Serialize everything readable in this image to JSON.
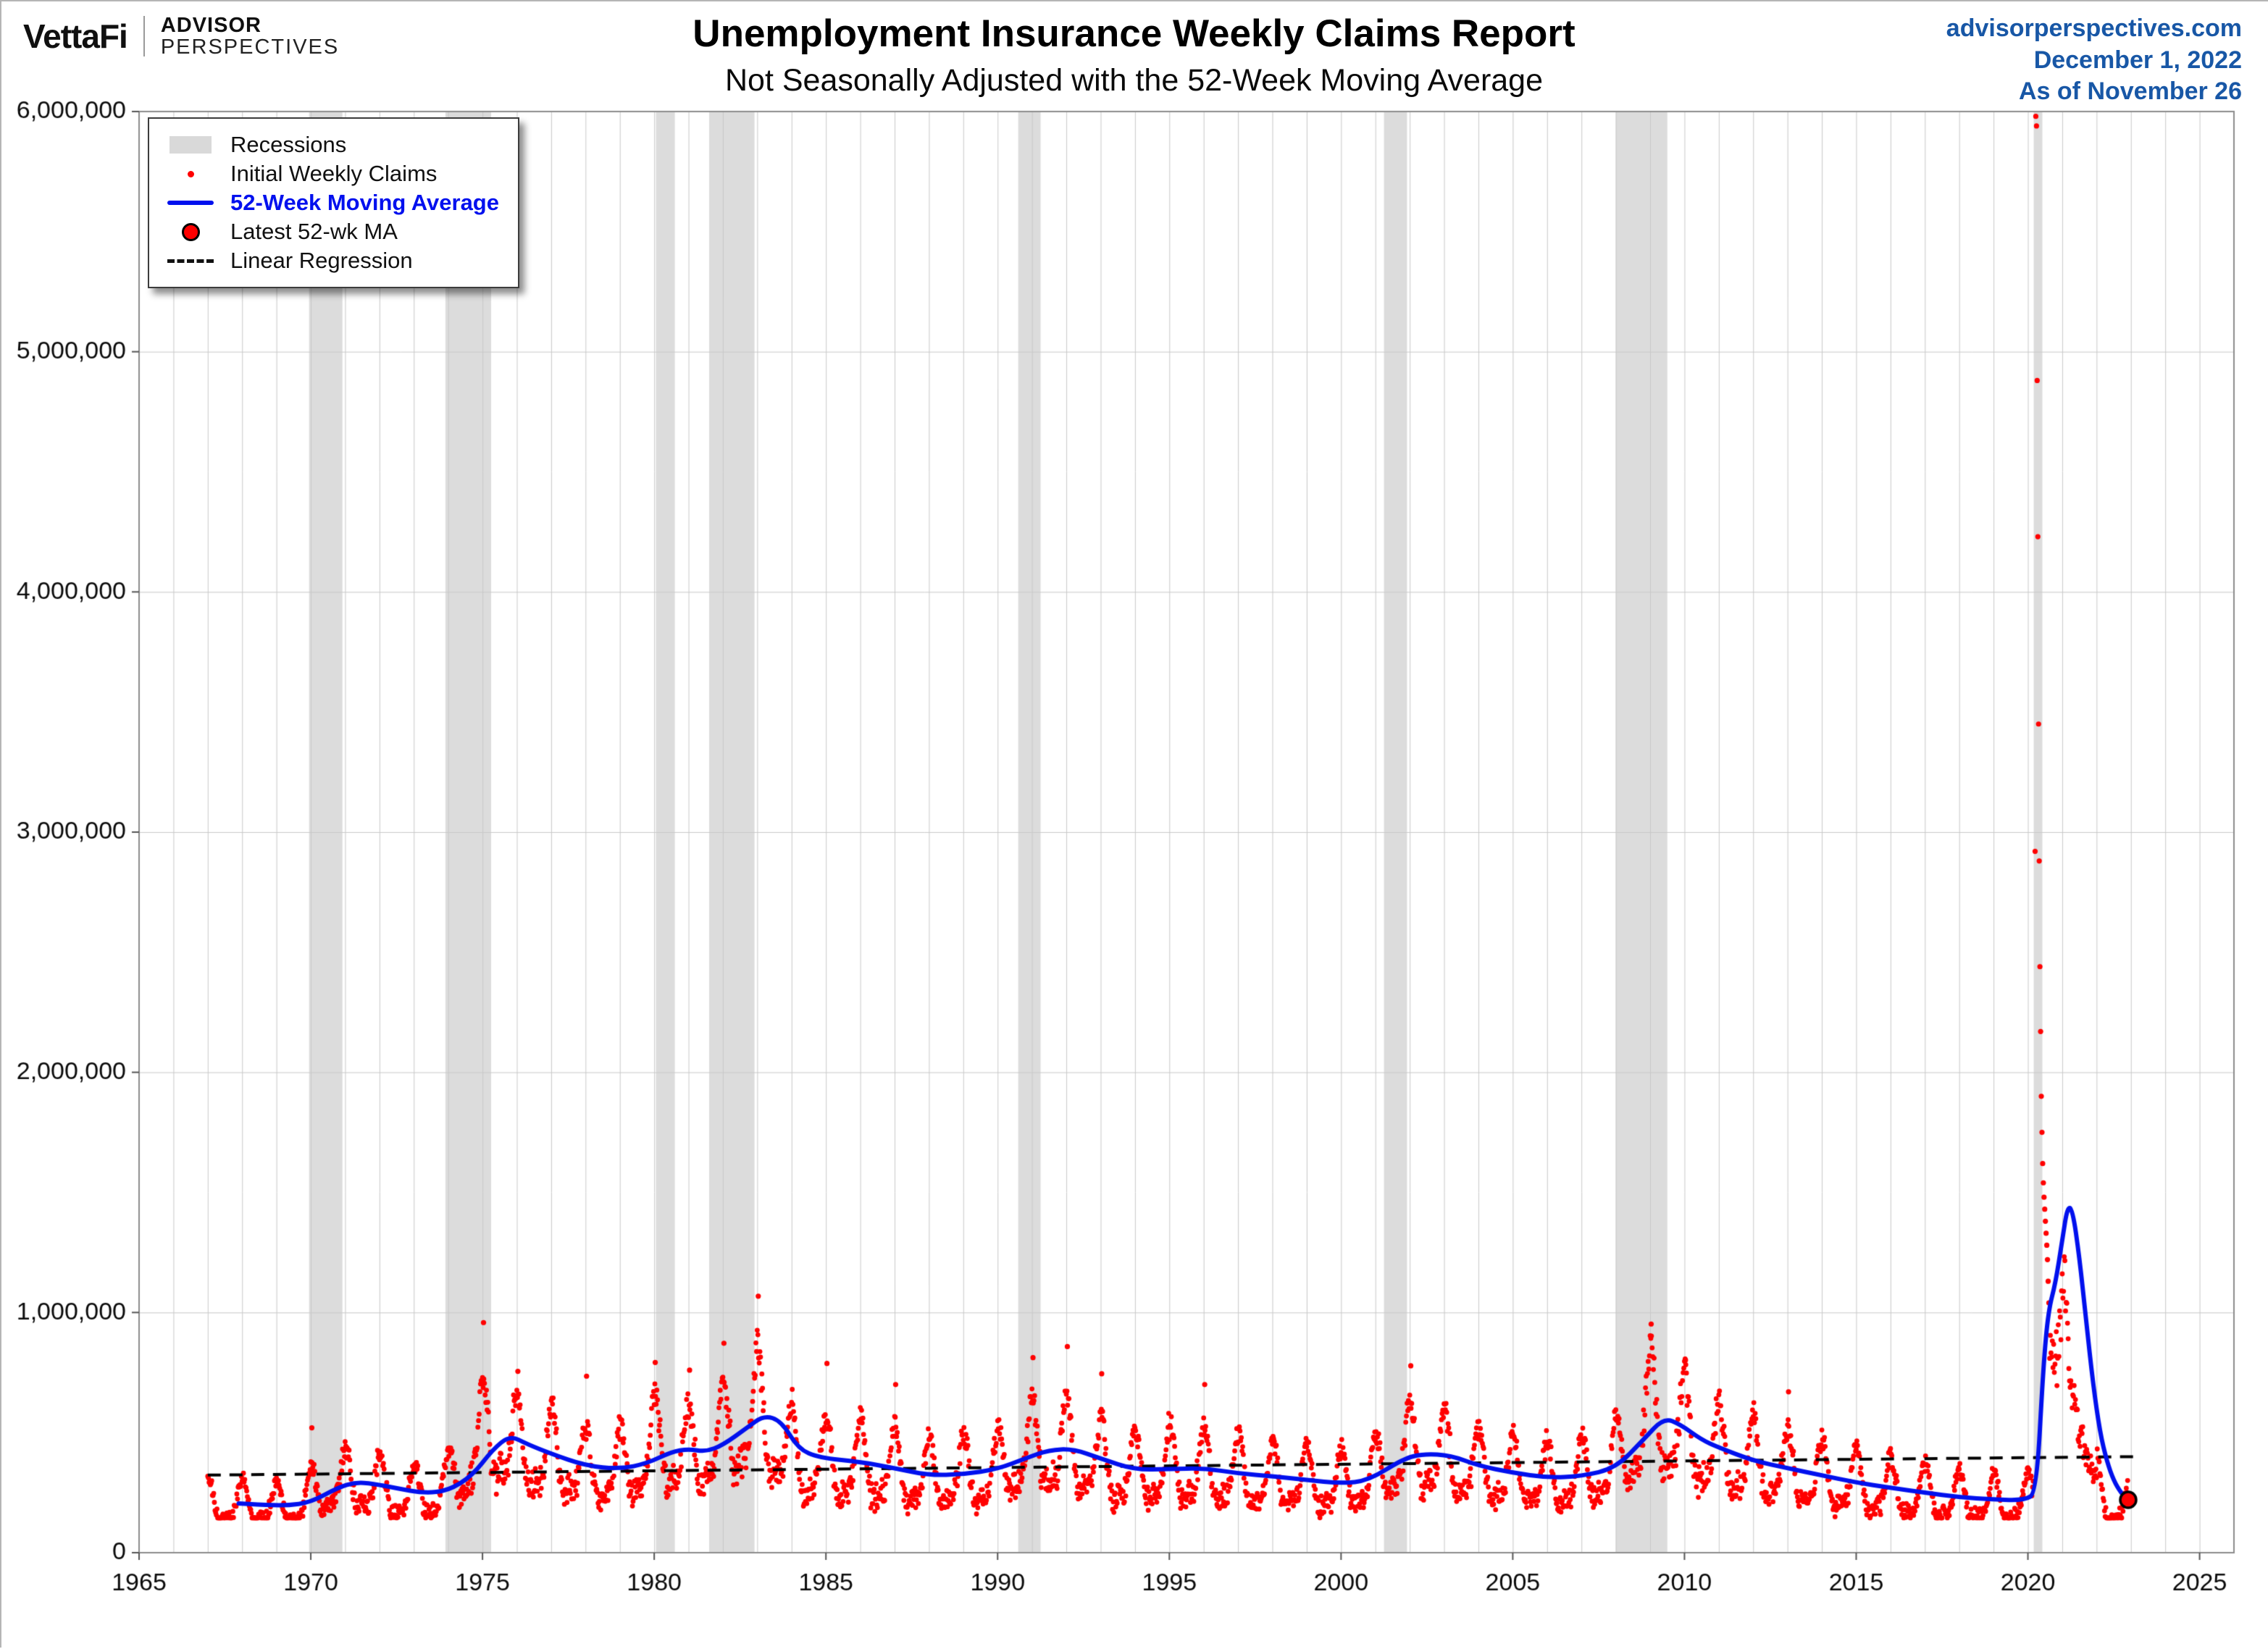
{
  "header": {
    "brand": {
      "vettafi": "VettaFi",
      "advisor": "ADVISOR",
      "perspectives": "PERSPECTIVES"
    },
    "title": "Unemployment Insurance Weekly Claims Report",
    "subtitle": "Not Seasonally Adjusted with the 52-Week Moving Average",
    "source": {
      "site": "advisorperspectives.com",
      "date": "December 1, 2022",
      "as_of": "As of November 26",
      "color": "#1857a6"
    }
  },
  "legend": {
    "items": [
      {
        "key": "recessions",
        "label": "Recessions"
      },
      {
        "key": "initial-weekly-claims",
        "label": "Initial Weekly Claims"
      },
      {
        "key": "ma-52wk",
        "label": "52-Week Moving Average"
      },
      {
        "key": "latest-ma",
        "label": "Latest 52-wk MA"
      },
      {
        "key": "linear-regression",
        "label": "Linear Regression"
      }
    ]
  },
  "chart_data": {
    "type": "scatter",
    "title": "Unemployment Insurance Weekly Claims Report",
    "subtitle": "Not Seasonally Adjusted with the 52-Week Moving Average",
    "x_domain": [
      1965,
      2026
    ],
    "y_domain": [
      0,
      6000000
    ],
    "x_ticks": [
      1965,
      1970,
      1975,
      1980,
      1985,
      1990,
      1995,
      2000,
      2005,
      2010,
      2015,
      2020,
      2025
    ],
    "x_tick_labels": [
      "1965",
      "1970",
      "1975",
      "1980",
      "1985",
      "1990",
      "1995",
      "2000",
      "2005",
      "2010",
      "2015",
      "2020",
      "2025"
    ],
    "y_ticks": [
      0,
      1000000,
      2000000,
      3000000,
      4000000,
      5000000,
      6000000
    ],
    "y_tick_labels": [
      "0",
      "1,000,000",
      "2,000,000",
      "3,000,000",
      "4,000,000",
      "5,000,000",
      "6,000,000"
    ],
    "grid": {
      "x_minor_step": 1,
      "on": true
    },
    "legend_position": "top-left",
    "colors": {
      "scatter_dot": "#ff0000",
      "moving_average": "#0010ee",
      "regression": "#000000",
      "recession_band": "#dcdcdc",
      "grid": "#c9c9c9",
      "axis": "#8c8c8c",
      "tick_label": "#0a0a0a"
    },
    "recessions": [
      [
        1969.95,
        1970.92
      ],
      [
        1973.92,
        1975.25
      ],
      [
        1980.05,
        1980.6
      ],
      [
        1981.6,
        1982.92
      ],
      [
        1990.6,
        1991.25
      ],
      [
        2001.25,
        2001.92
      ],
      [
        2008.0,
        2009.5
      ],
      [
        2020.17,
        2020.42
      ]
    ],
    "ma_points": [
      [
        1967.9,
        205000
      ],
      [
        1968.5,
        200000
      ],
      [
        1969.3,
        196000
      ],
      [
        1970,
        210000
      ],
      [
        1970.8,
        272000
      ],
      [
        1971.3,
        293000
      ],
      [
        1971.8,
        288000
      ],
      [
        1972.5,
        268000
      ],
      [
        1973.3,
        248000
      ],
      [
        1974,
        258000
      ],
      [
        1974.7,
        320000
      ],
      [
        1975.3,
        430000
      ],
      [
        1975.8,
        488000
      ],
      [
        1976.3,
        452000
      ],
      [
        1977,
        412000
      ],
      [
        1978,
        362000
      ],
      [
        1979,
        348000
      ],
      [
        1979.8,
        372000
      ],
      [
        1980.5,
        420000
      ],
      [
        1981,
        432000
      ],
      [
        1981.5,
        420000
      ],
      [
        1982,
        448000
      ],
      [
        1982.7,
        520000
      ],
      [
        1983.2,
        572000
      ],
      [
        1983.7,
        548000
      ],
      [
        1984.2,
        432000
      ],
      [
        1984.8,
        395000
      ],
      [
        1986,
        378000
      ],
      [
        1987,
        352000
      ],
      [
        1988,
        322000
      ],
      [
        1989,
        326000
      ],
      [
        1990,
        348000
      ],
      [
        1990.8,
        392000
      ],
      [
        1991.5,
        428000
      ],
      [
        1992.2,
        432000
      ],
      [
        1993,
        392000
      ],
      [
        1994,
        345000
      ],
      [
        1995,
        348000
      ],
      [
        1996,
        352000
      ],
      [
        1997,
        330000
      ],
      [
        1998,
        318000
      ],
      [
        1999,
        303000
      ],
      [
        2000,
        288000
      ],
      [
        2000.8,
        300000
      ],
      [
        2001.8,
        390000
      ],
      [
        2002.4,
        412000
      ],
      [
        2003.2,
        405000
      ],
      [
        2004,
        362000
      ],
      [
        2005,
        333000
      ],
      [
        2006,
        312000
      ],
      [
        2007,
        318000
      ],
      [
        2008,
        352000
      ],
      [
        2008.8,
        470000
      ],
      [
        2009.4,
        562000
      ],
      [
        2009.9,
        532000
      ],
      [
        2010.5,
        470000
      ],
      [
        2011,
        438000
      ],
      [
        2012,
        383000
      ],
      [
        2013,
        352000
      ],
      [
        2014,
        322000
      ],
      [
        2015,
        292000
      ],
      [
        2016,
        270000
      ],
      [
        2017,
        250000
      ],
      [
        2018,
        231000
      ],
      [
        2019,
        221000
      ],
      [
        2019.9,
        218000
      ],
      [
        2020.25,
        250000
      ],
      [
        2020.45,
        780000
      ],
      [
        2020.6,
        1010000
      ],
      [
        2020.8,
        1120000
      ],
      [
        2021,
        1300000
      ],
      [
        2021.15,
        1440000
      ],
      [
        2021.3,
        1430000
      ],
      [
        2021.5,
        1230000
      ],
      [
        2021.7,
        960000
      ],
      [
        2021.9,
        700000
      ],
      [
        2022.1,
        500000
      ],
      [
        2022.3,
        380000
      ],
      [
        2022.5,
        300000
      ],
      [
        2022.7,
        252000
      ],
      [
        2022.85,
        228000
      ],
      [
        2022.92,
        220000
      ]
    ],
    "trend_points": [
      [
        1967,
        210000
      ],
      [
        1968,
        205000
      ],
      [
        1969,
        198000
      ],
      [
        1969.8,
        212000
      ],
      [
        1970.5,
        290000
      ],
      [
        1971.2,
        300000
      ],
      [
        1972,
        268000
      ],
      [
        1973,
        246000
      ],
      [
        1974,
        278000
      ],
      [
        1974.9,
        470000
      ],
      [
        1975.3,
        515000
      ],
      [
        1975.8,
        455000
      ],
      [
        1976.5,
        420000
      ],
      [
        1977.2,
        398000
      ],
      [
        1978,
        348000
      ],
      [
        1979,
        345000
      ],
      [
        1980.2,
        452000
      ],
      [
        1980.7,
        440000
      ],
      [
        1981.2,
        405000
      ],
      [
        1981.9,
        465000
      ],
      [
        1982.6,
        555000
      ],
      [
        1983.1,
        575000
      ],
      [
        1983.6,
        470000
      ],
      [
        1984.2,
        392000
      ],
      [
        1985,
        385000
      ],
      [
        1986,
        372000
      ],
      [
        1987,
        340000
      ],
      [
        1988,
        316000
      ],
      [
        1989,
        330000
      ],
      [
        1990,
        352000
      ],
      [
        1990.8,
        432000
      ],
      [
        1991.4,
        448000
      ],
      [
        1992.1,
        428000
      ],
      [
        1993,
        372000
      ],
      [
        1994,
        340000
      ],
      [
        1995,
        355000
      ],
      [
        1996,
        350000
      ],
      [
        1997,
        325000
      ],
      [
        1998,
        315000
      ],
      [
        1999,
        300000
      ],
      [
        2000,
        286000
      ],
      [
        2001,
        330000
      ],
      [
        2001.8,
        420000
      ],
      [
        2002.5,
        415000
      ],
      [
        2003.1,
        405000
      ],
      [
        2004,
        348000
      ],
      [
        2005,
        330000
      ],
      [
        2006,
        310000
      ],
      [
        2007,
        320000
      ],
      [
        2008,
        378000
      ],
      [
        2008.9,
        565000
      ],
      [
        2009.3,
        598000
      ],
      [
        2009.8,
        520000
      ],
      [
        2010.3,
        468000
      ],
      [
        2011,
        422000
      ],
      [
        2012,
        380000
      ],
      [
        2013,
        350000
      ],
      [
        2014,
        320000
      ],
      [
        2015,
        290000
      ],
      [
        2016,
        268000
      ],
      [
        2017,
        248000
      ],
      [
        2018,
        228000
      ],
      [
        2019,
        218000
      ],
      [
        2020.1,
        222000
      ],
      [
        2020.63,
        940000
      ],
      [
        2020.75,
        835000
      ],
      [
        2020.87,
        790000
      ],
      [
        2020.97,
        860000
      ],
      [
        2021.05,
        1020000
      ],
      [
        2021.15,
        880000
      ],
      [
        2021.25,
        760000
      ],
      [
        2021.35,
        690000
      ],
      [
        2021.45,
        610000
      ],
      [
        2021.55,
        520000
      ],
      [
        2021.65,
        455000
      ],
      [
        2021.75,
        400000
      ],
      [
        2021.85,
        345000
      ],
      [
        2021.95,
        300000
      ],
      [
        2022.05,
        262000
      ],
      [
        2022.2,
        228000
      ],
      [
        2022.35,
        205000
      ],
      [
        2022.5,
        200000
      ],
      [
        2022.65,
        210000
      ],
      [
        2022.8,
        228000
      ],
      [
        2022.92,
        240000
      ]
    ],
    "spike_points": [
      [
        2020.21,
        2920000
      ],
      [
        2020.23,
        5980000
      ],
      [
        2020.25,
        5940000
      ],
      [
        2020.27,
        4880000
      ],
      [
        2020.29,
        4230000
      ],
      [
        2020.31,
        3450000
      ],
      [
        2020.33,
        2880000
      ],
      [
        2020.35,
        2440000
      ],
      [
        2020.37,
        2170000
      ],
      [
        2020.39,
        1900000
      ],
      [
        2020.41,
        1750000
      ],
      [
        2020.43,
        1620000
      ],
      [
        2020.45,
        1540000
      ],
      [
        2020.47,
        1480000
      ],
      [
        2020.49,
        1430000
      ],
      [
        2020.51,
        1380000
      ],
      [
        2020.53,
        1330000
      ],
      [
        2020.55,
        1280000
      ],
      [
        2020.57,
        1220000
      ],
      [
        2020.59,
        1130000
      ],
      [
        2020.61,
        1040000
      ]
    ],
    "outliers": [
      [
        1970.03,
        520000
      ],
      [
        1975.03,
        958000
      ],
      [
        1976.03,
        755000
      ],
      [
        1978.03,
        735000
      ],
      [
        1980.03,
        792000
      ],
      [
        1981.03,
        760000
      ],
      [
        1982.03,
        872000
      ],
      [
        1983.03,
        1068000
      ],
      [
        1985.03,
        788000
      ],
      [
        1987.03,
        700000
      ],
      [
        1991.03,
        812000
      ],
      [
        1992.03,
        858000
      ],
      [
        1993.03,
        745000
      ],
      [
        1996.03,
        700000
      ],
      [
        2002.03,
        778000
      ],
      [
        2009.03,
        952000
      ],
      [
        2010.03,
        802000
      ],
      [
        2013.03,
        670000
      ]
    ],
    "scatter_skip_range": [
      2020.17,
      2020.62
    ],
    "seasonal_amplitude": 0.5,
    "noise_amplitude": 0.13,
    "scatter_start": 1967.0,
    "scatter_end": 2022.92,
    "regression": {
      "x1": 1967.0,
      "y1": 323000,
      "x2": 2023.2,
      "y2": 400000
    },
    "latest_ma": {
      "x": 2022.92,
      "y": 220000
    }
  }
}
